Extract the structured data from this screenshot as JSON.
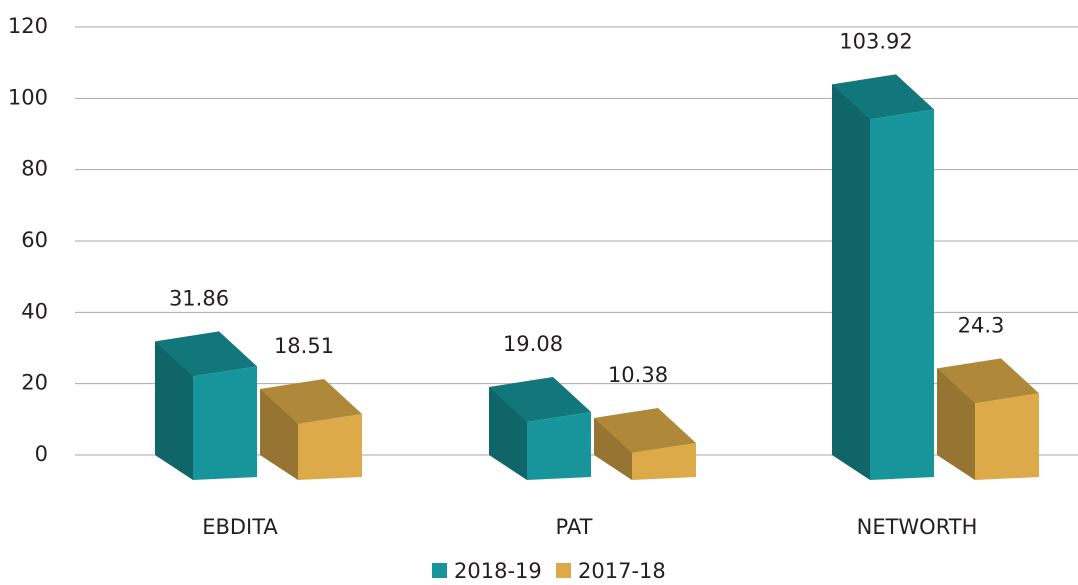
{
  "chart_data": {
    "type": "bar3d",
    "categories": [
      "EBDITA",
      "PAT",
      "NETWORTH"
    ],
    "series": [
      {
        "name": "2018-19",
        "color": "#17959a",
        "values": [
          31.86,
          19.08,
          103.92
        ]
      },
      {
        "name": "2017-18",
        "color": "#dcaa48",
        "values": [
          18.51,
          10.38,
          24.3
        ]
      }
    ],
    "ylim": [
      0,
      120
    ],
    "yticks": [
      0,
      20,
      40,
      60,
      80,
      100,
      120
    ],
    "grid": true,
    "legend": "bottom"
  }
}
